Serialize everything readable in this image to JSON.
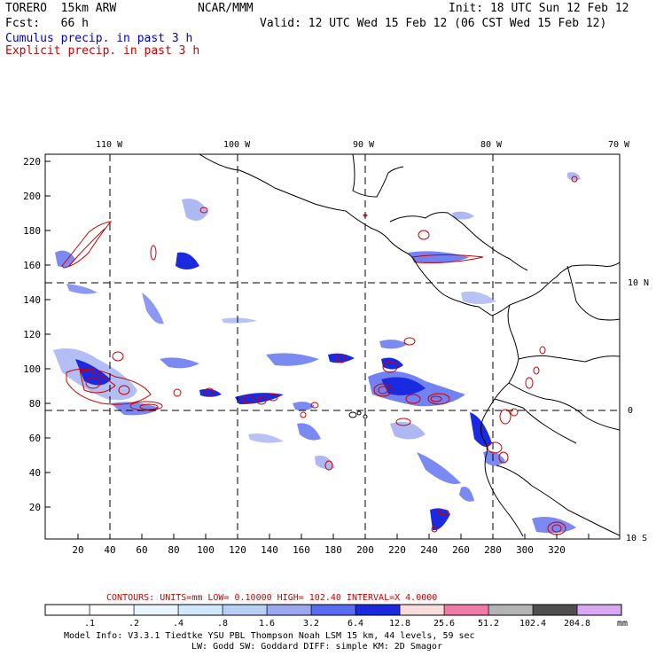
{
  "header": {
    "run_name": "TORERO  15km ARW",
    "center": "NCAR/MMM",
    "init": "Init: 18 UTC Sun 12 Feb 12",
    "fcst": "Fcst:   66 h",
    "valid": "Valid: 12 UTC Wed 15 Feb 12 (06 CST Wed 15 Feb 12)",
    "field1": "Cumulus precip. in past 3 h",
    "field2": "Explicit precip. in past 3 h"
  },
  "map": {
    "lon_labels": [
      "110 W",
      "100 W",
      "90 W",
      "80 W",
      "70 W"
    ],
    "lat_labels": [
      "10 N",
      "0",
      "10 S"
    ],
    "x_ticks": [
      "20",
      "40",
      "60",
      "80",
      "100",
      "120",
      "140",
      "160",
      "180",
      "200",
      "220",
      "240",
      "260",
      "280",
      "300",
      "320"
    ],
    "y_ticks": [
      "220",
      "200",
      "180",
      "160",
      "140",
      "120",
      "100",
      "80",
      "60",
      "40",
      "20"
    ]
  },
  "contour_info": {
    "label": "CONTOURS:  UNITS=mm  LOW= 0.10000      HIGH=  102.40      INTERVAL=X  4.0000"
  },
  "colorbar": {
    "thresholds": [
      ".1",
      ".2",
      ".4",
      ".8",
      "1.6",
      "3.2",
      "6.4",
      "12.8",
      "25.6",
      "51.2",
      "102.4",
      "204.8"
    ],
    "unit": "mm",
    "colors": [
      "#ffffff",
      "#ffffff",
      "#e8f4ff",
      "#d0e8ff",
      "#b8d0f8",
      "#9aa8f0",
      "#5a6cf0",
      "#1a2ae0",
      "#fadcdc",
      "#f07aa8",
      "#b4b4b4",
      "#505050",
      "#d8a8f0"
    ]
  },
  "footer": {
    "line1": "Model Info: V3.3.1    Tiedtke YSU PBL  Thompson    Noah LSM  15 km,   44 levels,   59 sec",
    "line2": "LW: Godd SW: Goddard DIFF: simple KM: 2D Smagor"
  }
}
